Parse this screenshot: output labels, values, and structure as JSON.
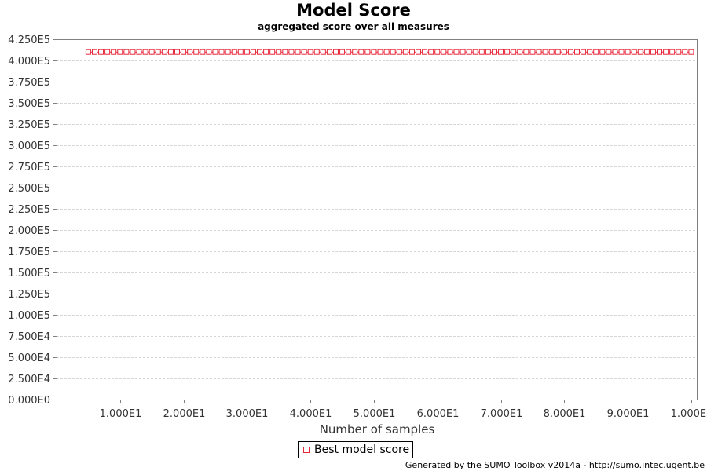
{
  "chart_data": {
    "type": "line",
    "title": "Model Score",
    "subtitle": "aggregated score over all measures",
    "xlabel": "Number of samples",
    "ylabel": "",
    "xlim": [
      0,
      101
    ],
    "ylim": [
      0,
      425000
    ],
    "x_ticks": [
      10,
      20,
      30,
      40,
      50,
      60,
      70,
      80,
      90,
      100
    ],
    "x_tick_labels": [
      "1.000E1",
      "2.000E1",
      "3.000E1",
      "4.000E1",
      "5.000E1",
      "6.000E1",
      "7.000E1",
      "8.000E1",
      "9.000E1",
      "1.000E2"
    ],
    "y_ticks": [
      0,
      25000,
      50000,
      75000,
      100000,
      125000,
      150000,
      175000,
      200000,
      225000,
      250000,
      275000,
      300000,
      325000,
      350000,
      375000,
      400000,
      425000
    ],
    "y_tick_labels": [
      "0.000E0",
      "2.500E4",
      "5.000E4",
      "7.500E4",
      "1.000E5",
      "1.250E5",
      "1.500E5",
      "1.750E5",
      "2.000E5",
      "2.250E5",
      "2.500E5",
      "2.750E5",
      "3.000E5",
      "3.250E5",
      "3.500E5",
      "3.750E5",
      "4.000E5",
      "4.250E5"
    ],
    "grid": true,
    "legend_position": "bottom-center",
    "series": [
      {
        "name": "Best model score",
        "color": "#e8283a",
        "marker": "square",
        "x_start": 5,
        "x_end": 100,
        "x_step": 1,
        "y_constant": 410000
      }
    ]
  },
  "footer": "Generated by the SUMO Toolbox v2014a - http://sumo.intec.ugent.be"
}
